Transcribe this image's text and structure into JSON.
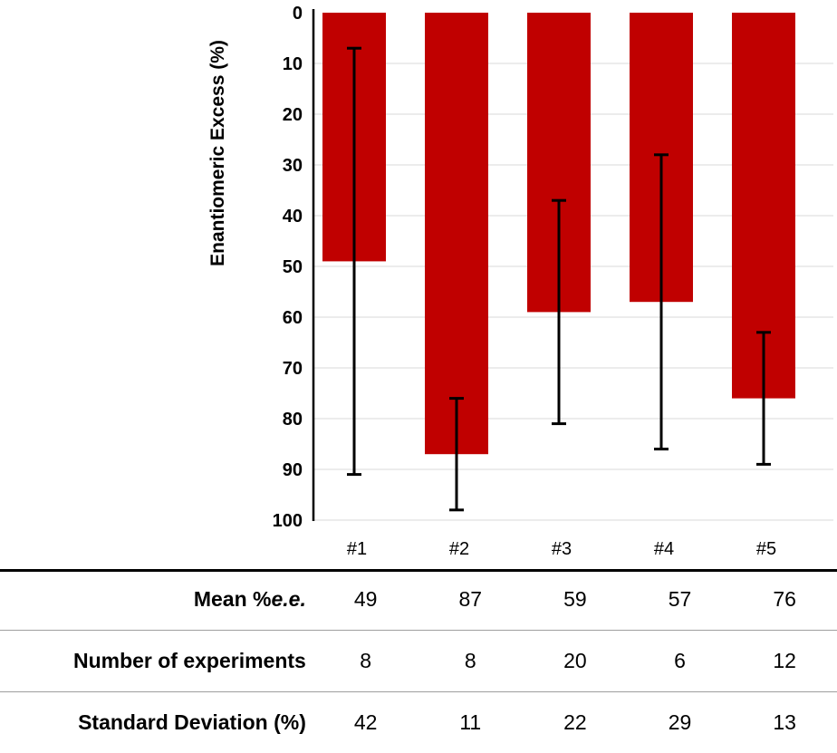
{
  "chart_data": {
    "type": "bar",
    "categories": [
      "#1",
      "#2",
      "#3",
      "#4",
      "#5"
    ],
    "values": [
      49,
      87,
      59,
      57,
      76
    ],
    "error": [
      42,
      11,
      22,
      29,
      13
    ],
    "ylabel": "Enantiomeric Excess (%)",
    "ylim": [
      0,
      100
    ],
    "yticks": [
      0,
      10,
      20,
      30,
      40,
      50,
      60,
      70,
      80,
      90,
      100
    ],
    "y_axis_inverted": true,
    "grid": true,
    "bar_color": "#c00000",
    "error_color": "#000000"
  },
  "table": {
    "rows": [
      {
        "label_plain": "Mean %",
        "label_italic": "e.e.",
        "cells": [
          "49",
          "87",
          "59",
          "57",
          "76"
        ]
      },
      {
        "label_plain": "Number of experiments",
        "label_italic": "",
        "cells": [
          "8",
          "8",
          "20",
          "6",
          "12"
        ]
      },
      {
        "label_plain": "Standard Deviation (%)",
        "label_italic": "",
        "cells": [
          "42",
          "11",
          "22",
          "29",
          "13"
        ]
      }
    ]
  }
}
